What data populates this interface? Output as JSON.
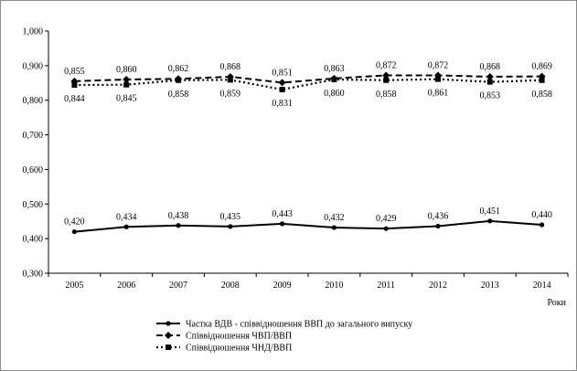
{
  "chart_data": {
    "type": "line",
    "title": "",
    "xlabel": "Роки",
    "ylabel": "",
    "x": [
      "2005",
      "2006",
      "2007",
      "2008",
      "2009",
      "2010",
      "2011",
      "2012",
      "2013",
      "2014"
    ],
    "ylim": [
      0.3,
      1.0
    ],
    "yticks": [
      "0,300",
      "0,400",
      "0,500",
      "0,600",
      "0,700",
      "0,800",
      "0,900",
      "1,000"
    ],
    "grid": false,
    "legend_position": "bottom",
    "series": [
      {
        "name": "Частка ВДВ - співвідношення ВВП до загального випуску",
        "style": "solid",
        "marker": "circle",
        "values": [
          0.42,
          0.434,
          0.438,
          0.435,
          0.443,
          0.432,
          0.429,
          0.436,
          0.451,
          0.44
        ],
        "labels": [
          "0,420",
          "0,434",
          "0,438",
          "0,435",
          "0,443",
          "0,432",
          "0,429",
          "0,436",
          "0,451",
          "0,440"
        ],
        "label_pos": "above"
      },
      {
        "name": "Співвідношення ЧВП/ВВП",
        "style": "dashed",
        "marker": "diamond",
        "values": [
          0.855,
          0.86,
          0.862,
          0.868,
          0.851,
          0.863,
          0.872,
          0.872,
          0.868,
          0.869
        ],
        "labels": [
          "0,855",
          "0,860",
          "0,862",
          "0,868",
          "0,851",
          "0,863",
          "0,872",
          "0,872",
          "0,868",
          "0,869"
        ],
        "label_pos": "above"
      },
      {
        "name": "Співвідношення ЧНД/ВВП",
        "style": "dotted",
        "marker": "square",
        "values": [
          0.844,
          0.845,
          0.858,
          0.859,
          0.831,
          0.86,
          0.858,
          0.861,
          0.853,
          0.858
        ],
        "labels": [
          "0,844",
          "0,845",
          "0,858",
          "0,859",
          "0,831",
          "0,860",
          "0,858",
          "0,861",
          "0,853",
          "0,858"
        ],
        "label_pos": "below"
      }
    ]
  }
}
